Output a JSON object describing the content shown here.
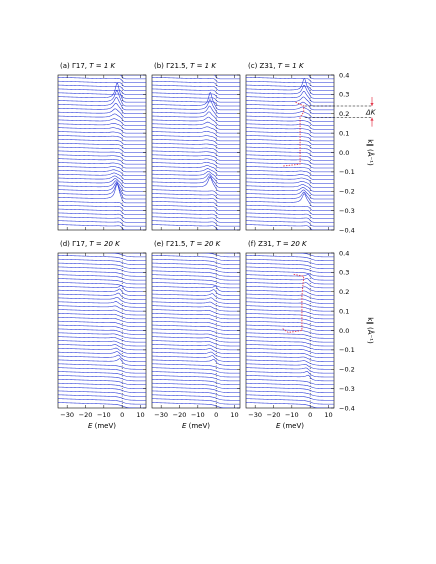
{
  "panels": [
    {
      "tag": "(a)",
      "sample": "Γ17,",
      "temp": "T = 1 K"
    },
    {
      "tag": "(b)",
      "sample": "Γ21.5,",
      "temp": "T = 1 K"
    },
    {
      "tag": "(c)",
      "sample": "Z31,",
      "temp": "T = 1 K"
    },
    {
      "tag": "(d)",
      "sample": "Γ17,",
      "temp": "T = 20 K"
    },
    {
      "tag": "(e)",
      "sample": "Γ21.5,",
      "temp": "T = 20 K"
    },
    {
      "tag": "(f)",
      "sample": "Z31,",
      "temp": "T = 20 K"
    }
  ],
  "axes": {
    "xlabel": "E (meV)",
    "ylabel": "k∥ (Å⁻¹)",
    "x_ticks": [
      "−30",
      "−20",
      "−10",
      "0",
      "10"
    ],
    "y_ticks": [
      "0.4",
      "0.3",
      "0.2",
      "0.1",
      "0.0",
      "−0.1",
      "−0.2",
      "−0.3",
      "−0.4"
    ],
    "delta_label": "ΔK"
  },
  "colors": {
    "curve": "#1f2fd6",
    "guide": "#e4384b",
    "dashed": "#000000"
  },
  "chart_data": {
    "type": "line",
    "description_free": true,
    "x_range": [
      -35,
      13
    ],
    "y_range": [
      -0.4,
      0.4
    ],
    "x_ticks": [
      -30,
      -20,
      -10,
      0,
      10
    ],
    "y_ticks": [
      0.4,
      0.3,
      0.2,
      0.1,
      0.0,
      -0.1,
      -0.2,
      -0.3,
      -0.4
    ],
    "curves_per_panel": 41,
    "k_range": [
      -0.4,
      0.4
    ],
    "panels": [
      {
        "tag": "(a)",
        "row": 0,
        "col": 0,
        "gap_meV": 2.5,
        "kF": 0.27,
        "peak": 1.3
      },
      {
        "tag": "(b)",
        "row": 0,
        "col": 1,
        "gap_meV": 3.0,
        "kF": 0.22,
        "peak": 1.0
      },
      {
        "tag": "(c)",
        "row": 0,
        "col": 2,
        "gap_meV": 3.0,
        "kF": 0.3,
        "peak": 0.9
      },
      {
        "tag": "(d)",
        "row": 1,
        "col": 0,
        "gap_meV": 0.0,
        "kF": 0.2,
        "peak": 0.6
      },
      {
        "tag": "(e)",
        "row": 1,
        "col": 1,
        "gap_meV": 0.0,
        "kF": 0.2,
        "peak": 0.5
      },
      {
        "tag": "(f)",
        "row": 1,
        "col": 2,
        "gap_meV": 0.0,
        "kF": 0.28,
        "peak": 0.5
      }
    ],
    "guide_c": [
      [
        -8,
        0.26
      ],
      [
        -3.5,
        0.24
      ],
      [
        -3.5,
        0.21
      ],
      [
        -5.5,
        0.18
      ],
      [
        -5.5,
        -0.06
      ],
      [
        -15,
        -0.07
      ]
    ],
    "guide_f": [
      [
        -9,
        0.29
      ],
      [
        -3.5,
        0.28
      ],
      [
        -4.5,
        0.18
      ],
      [
        -4.5,
        0.0
      ],
      [
        -12,
        -0.01
      ],
      [
        -15,
        0.01
      ]
    ],
    "delta_k_lines": [
      0.24,
      0.18
    ]
  }
}
